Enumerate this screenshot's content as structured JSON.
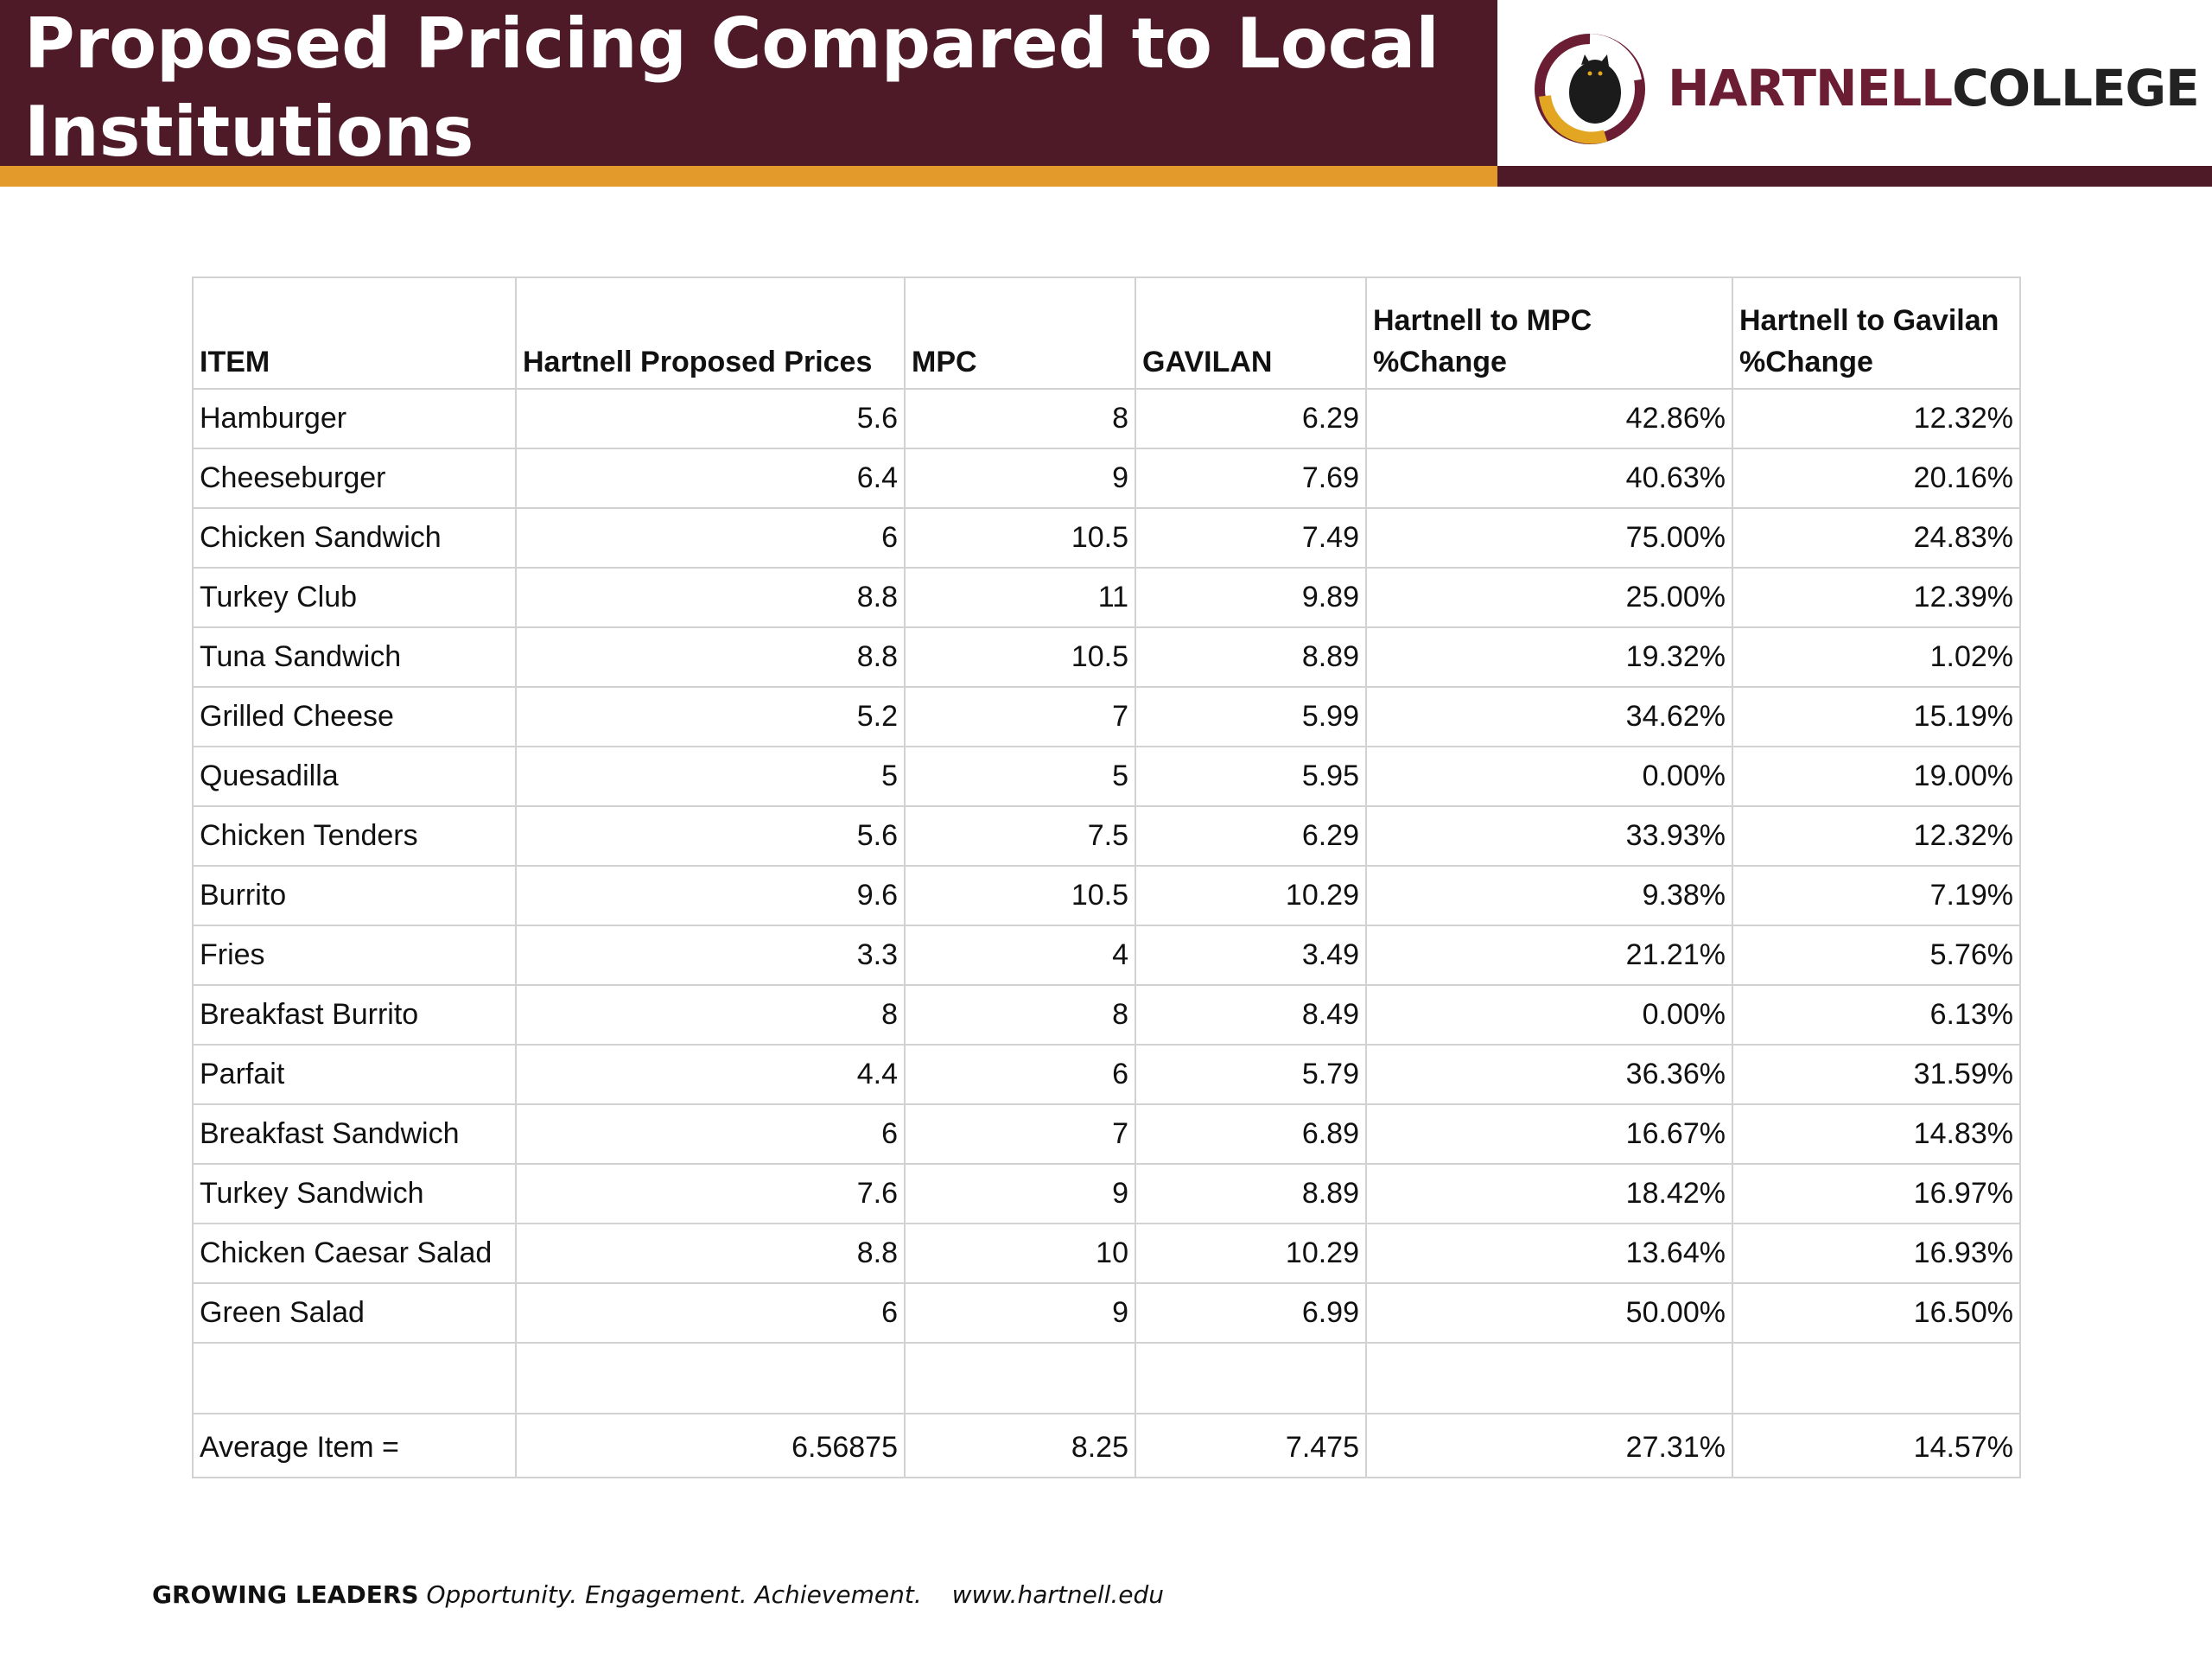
{
  "header": {
    "title_line1": "Proposed Pricing Compared to Local",
    "title_line2": "Institutions",
    "logo": {
      "icon": "panther-logo-icon",
      "word1": "HARTNELL",
      "word2": "COLLEGE"
    }
  },
  "colors": {
    "maroon": "#4e1a28",
    "orange": "#e39a2a",
    "logo_maroon": "#6b1e33",
    "gridline": "#d2d2d2"
  },
  "table": {
    "columns": [
      "ITEM",
      "Hartnell Proposed Prices",
      "MPC",
      "GAVILAN",
      "Hartnell to MPC %Change",
      "Hartnell to Gavilan %Change"
    ],
    "rows": [
      [
        "Hamburger",
        "5.6",
        "8",
        "6.29",
        "42.86%",
        "12.32%"
      ],
      [
        "Cheeseburger",
        "6.4",
        "9",
        "7.69",
        "40.63%",
        "20.16%"
      ],
      [
        "Chicken Sandwich",
        "6",
        "10.5",
        "7.49",
        "75.00%",
        "24.83%"
      ],
      [
        "Turkey Club",
        "8.8",
        "11",
        "9.89",
        "25.00%",
        "12.39%"
      ],
      [
        "Tuna Sandwich",
        "8.8",
        "10.5",
        "8.89",
        "19.32%",
        "1.02%"
      ],
      [
        "Grilled Cheese",
        "5.2",
        "7",
        "5.99",
        "34.62%",
        "15.19%"
      ],
      [
        "Quesadilla",
        "5",
        "5",
        "5.95",
        "0.00%",
        "19.00%"
      ],
      [
        "Chicken Tenders",
        "5.6",
        "7.5",
        "6.29",
        "33.93%",
        "12.32%"
      ],
      [
        "Burrito",
        "9.6",
        "10.5",
        "10.29",
        "9.38%",
        "7.19%"
      ],
      [
        "Fries",
        "3.3",
        "4",
        "3.49",
        "21.21%",
        "5.76%"
      ],
      [
        "Breakfast Burrito",
        "8",
        "8",
        "8.49",
        "0.00%",
        "6.13%"
      ],
      [
        "Parfait",
        "4.4",
        "6",
        "5.79",
        "36.36%",
        "31.59%"
      ],
      [
        "Breakfast Sandwich",
        "6",
        "7",
        "6.89",
        "16.67%",
        "14.83%"
      ],
      [
        "Turkey Sandwich",
        "7.6",
        "9",
        "8.89",
        "18.42%",
        "16.97%"
      ],
      [
        "Chicken Caesar Salad",
        "8.8",
        "10",
        "10.29",
        "13.64%",
        "16.93%"
      ],
      [
        "Green Salad",
        "6",
        "9",
        "6.99",
        "50.00%",
        "16.50%"
      ]
    ],
    "average_row": [
      "Average Item =",
      "6.56875",
      "8.25",
      "7.475",
      "27.31%",
      "14.57%"
    ]
  },
  "footer": {
    "bold": "GROWING LEADERS",
    "tagline": "Opportunity. Engagement. Achievement.",
    "url": "www.hartnell.edu"
  }
}
